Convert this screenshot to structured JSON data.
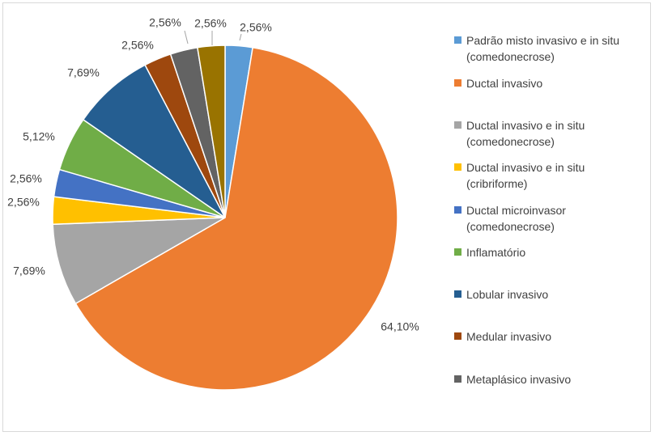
{
  "chart_data": {
    "type": "pie",
    "title": "",
    "start_angle_deg": 0,
    "direction": "clockwise",
    "legend_position": "right",
    "slices": [
      {
        "name": "Padrão misto invasivo e in situ (comedonecrose)",
        "value": 2.56,
        "label": "2,56%",
        "color": "#5B9BD5"
      },
      {
        "name": "Ductal invasivo",
        "value": 64.1,
        "label": "64,10%",
        "color": "#ED7D31"
      },
      {
        "name": "Ductal invasivo e in situ (comedonecrose)",
        "value": 7.69,
        "label": "7,69%",
        "color": "#A5A5A5"
      },
      {
        "name": "Ductal invasivo e in situ (cribriforme)",
        "value": 2.56,
        "label": "2,56%",
        "color": "#FFC000"
      },
      {
        "name": "Ductal microinvasor (comedonecrose)",
        "value": 2.56,
        "label": "2,56%",
        "color": "#4472C4"
      },
      {
        "name": "Inflamatório",
        "value": 5.12,
        "label": "5,12%",
        "color": "#70AD47"
      },
      {
        "name": "Lobular invasivo",
        "value": 7.69,
        "label": "7,69%",
        "color": "#255E91"
      },
      {
        "name": "Medular invasivo",
        "value": 2.56,
        "label": "2,56%",
        "color": "#9E480E"
      },
      {
        "name": "Metaplásico invasivo",
        "value": 2.56,
        "label": "2,56%",
        "color": "#636363"
      },
      {
        "name": "",
        "value": 2.56,
        "label": "2,56%",
        "color": "#997300"
      }
    ]
  }
}
